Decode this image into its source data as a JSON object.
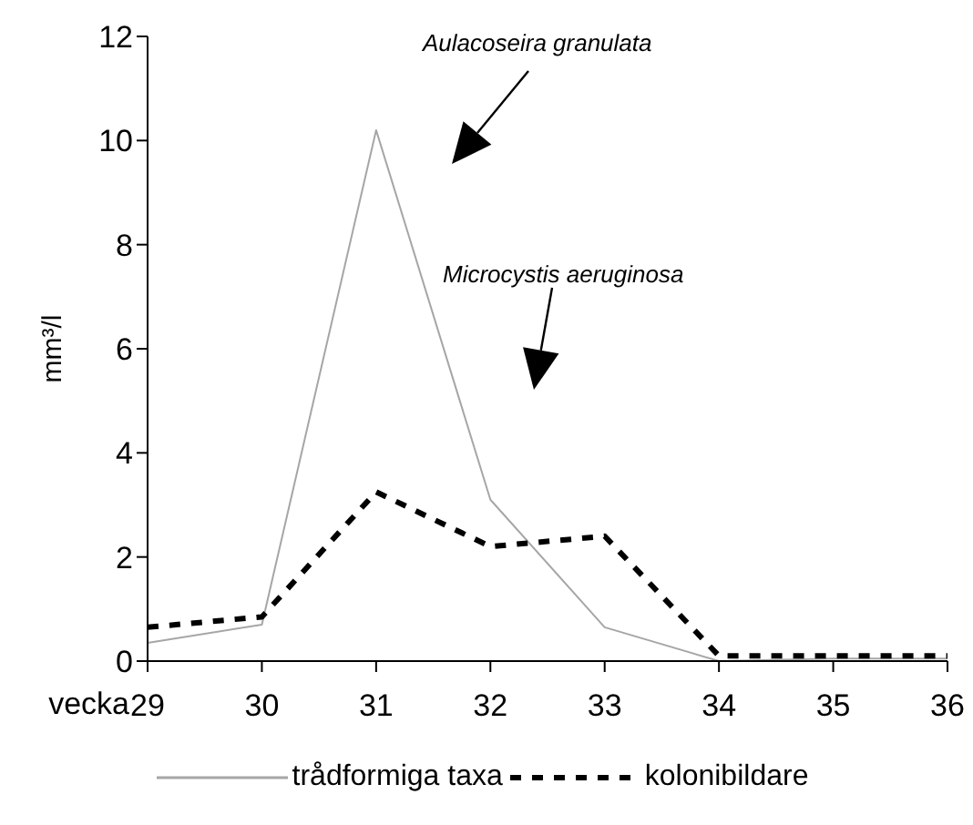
{
  "chart_data": {
    "type": "line",
    "xlabel": "vecka",
    "ylabel": "mm³/l",
    "categories": [
      "29",
      "30",
      "31",
      "32",
      "33",
      "34",
      "35",
      "36"
    ],
    "series": [
      {
        "name": "trådformiga taxa",
        "color": "#a6a6a6",
        "line_style": "solid",
        "values": [
          0.35,
          0.7,
          10.2,
          3.1,
          0.65,
          0.0,
          0.05,
          0.05
        ]
      },
      {
        "name": "kolonibildare",
        "color": "#000000",
        "line_style": "dashed",
        "values": [
          0.65,
          0.85,
          3.25,
          2.2,
          2.4,
          0.1,
          0.1,
          0.1
        ]
      }
    ],
    "ylim": [
      0,
      12
    ],
    "yticks": [
      0,
      2,
      4,
      6,
      8,
      10,
      12
    ],
    "grid": false,
    "legend": "bottom",
    "marker": "none",
    "annotations": [
      "Aulacoseira granulata",
      "Microcystis aeruginosa"
    ]
  }
}
